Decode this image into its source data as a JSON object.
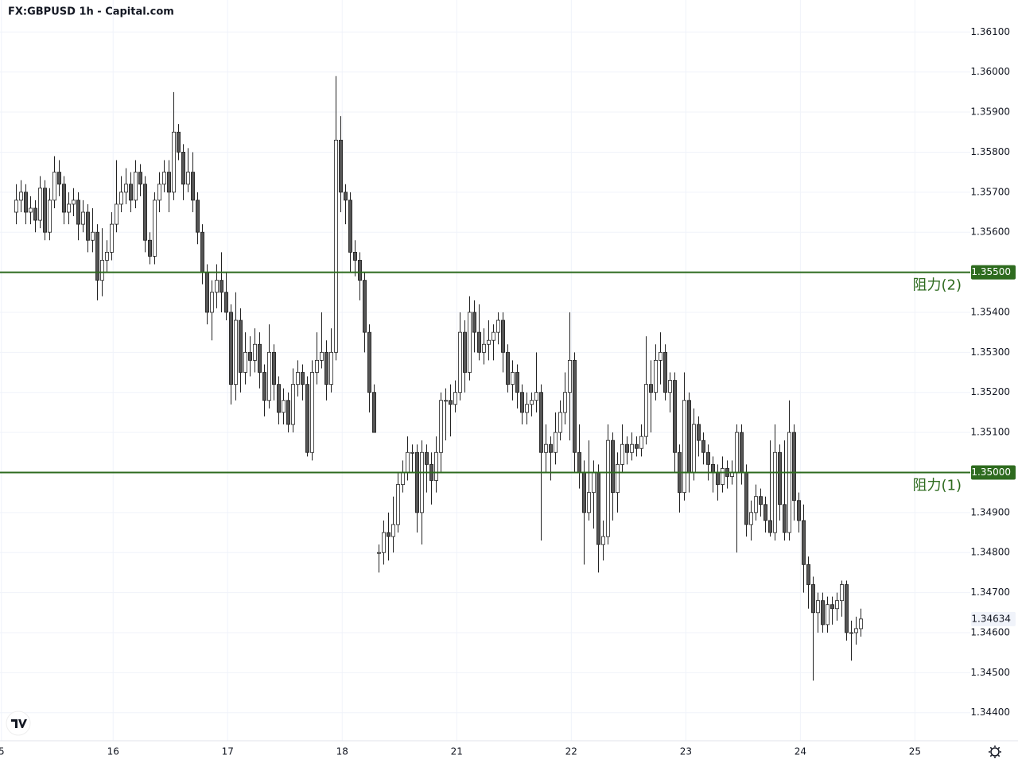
{
  "chart_data": {
    "type": "candlestick",
    "title": "FX:GBPUSD 1h - Capital.com",
    "up_color": "#ffffff",
    "down_color": "#555555",
    "border_color": "#222222",
    "grid": true,
    "ylim": [
      1.3433,
      1.3618
    ],
    "yticks": [
      {
        "value": 1.361,
        "label": "1.36100"
      },
      {
        "value": 1.36,
        "label": "1.36000"
      },
      {
        "value": 1.359,
        "label": "1.35900"
      },
      {
        "value": 1.358,
        "label": "1.35800"
      },
      {
        "value": 1.357,
        "label": "1.35700"
      },
      {
        "value": 1.356,
        "label": "1.35600"
      },
      {
        "value": 1.354,
        "label": "1.35400"
      },
      {
        "value": 1.353,
        "label": "1.35300"
      },
      {
        "value": 1.352,
        "label": "1.35200"
      },
      {
        "value": 1.351,
        "label": "1.35100"
      },
      {
        "value": 1.349,
        "label": "1.34900"
      },
      {
        "value": 1.348,
        "label": "1.34800"
      },
      {
        "value": 1.347,
        "label": "1.34700"
      },
      {
        "value": 1.346,
        "label": "1.34600"
      },
      {
        "value": 1.345,
        "label": "1.34500"
      },
      {
        "value": 1.344,
        "label": "1.34400"
      }
    ],
    "xlim": [
      -3.3,
      200
    ],
    "xticks": [
      {
        "value": -3.0,
        "label": "5"
      },
      {
        "value": 20.4,
        "label": "16"
      },
      {
        "value": 44.4,
        "label": "17"
      },
      {
        "value": 68.4,
        "label": "18"
      },
      {
        "value": 92.4,
        "label": "21"
      },
      {
        "value": 116.4,
        "label": "22"
      },
      {
        "value": 140.4,
        "label": "23"
      },
      {
        "value": 164.4,
        "label": "24"
      },
      {
        "value": 188.4,
        "label": "25"
      }
    ],
    "levels": [
      {
        "value": 1.355,
        "label": "阻力(2)",
        "value_label": "1.35500",
        "color": "#2e6b1f"
      },
      {
        "value": 1.35,
        "label": "阻力(1)",
        "value_label": "1.35000",
        "color": "#2e6b1f"
      }
    ],
    "last_price": {
      "value": 1.34634,
      "label": "1.34634"
    },
    "x": [
      0,
      1,
      2,
      3,
      4,
      5,
      6,
      7,
      8,
      9,
      10,
      11,
      12,
      13,
      14,
      15,
      16,
      17,
      18,
      19,
      20,
      21,
      22,
      23,
      24,
      25,
      26,
      27,
      28,
      29,
      30,
      31,
      32,
      33,
      34,
      35,
      36,
      37,
      38,
      39,
      40,
      41,
      42,
      43,
      44,
      45,
      46,
      47,
      48,
      49,
      50,
      51,
      52,
      53,
      54,
      55,
      56,
      57,
      58,
      59,
      60,
      61,
      62,
      63,
      64,
      65,
      66,
      67,
      68,
      69,
      70,
      71,
      72,
      73,
      74,
      75,
      76,
      77,
      78,
      79,
      80,
      81,
      82,
      83,
      84,
      85,
      86,
      87,
      88,
      89,
      90,
      91,
      92,
      93,
      94,
      95,
      96,
      97,
      98,
      99,
      100,
      101,
      102,
      103,
      104,
      105,
      106,
      107,
      108,
      109,
      110,
      111,
      112,
      113,
      114,
      115,
      116,
      117,
      118,
      119,
      120,
      121,
      122,
      123,
      124,
      125,
      126,
      127,
      128,
      129,
      130,
      131,
      132,
      133,
      134,
      135,
      136,
      137,
      138,
      139,
      140,
      141,
      142,
      143,
      144,
      145,
      146,
      147,
      148,
      149,
      150,
      151,
      152,
      153,
      154,
      155,
      156,
      157,
      158,
      159,
      160,
      161,
      162,
      163,
      164,
      165,
      166,
      167,
      168,
      169,
      170,
      171,
      172,
      173,
      174,
      175,
      176,
      177
    ],
    "candles": [
      [
        1.3565,
        1.3572,
        1.3562,
        1.3568
      ],
      [
        1.3568,
        1.3573,
        1.3565,
        1.357
      ],
      [
        1.357,
        1.3572,
        1.3562,
        1.3565
      ],
      [
        1.3565,
        1.3569,
        1.3562,
        1.3566
      ],
      [
        1.3566,
        1.3568,
        1.356,
        1.3563
      ],
      [
        1.3563,
        1.3574,
        1.3561,
        1.3571
      ],
      [
        1.3571,
        1.3573,
        1.3558,
        1.356
      ],
      [
        1.356,
        1.3571,
        1.3558,
        1.3568
      ],
      [
        1.3568,
        1.3579,
        1.3566,
        1.3575
      ],
      [
        1.3575,
        1.3578,
        1.3569,
        1.3572
      ],
      [
        1.3572,
        1.3574,
        1.3562,
        1.3565
      ],
      [
        1.3565,
        1.357,
        1.3562,
        1.3567
      ],
      [
        1.3567,
        1.3571,
        1.3564,
        1.3568
      ],
      [
        1.3568,
        1.357,
        1.3558,
        1.3562
      ],
      [
        1.3562,
        1.3568,
        1.356,
        1.3565
      ],
      [
        1.3565,
        1.3567,
        1.3555,
        1.3558
      ],
      [
        1.3558,
        1.3566,
        1.3555,
        1.356
      ],
      [
        1.356,
        1.3562,
        1.3543,
        1.3548
      ],
      [
        1.3548,
        1.3561,
        1.3544,
        1.3553
      ],
      [
        1.3553,
        1.3558,
        1.355,
        1.3555
      ],
      [
        1.3555,
        1.3565,
        1.3553,
        1.3562
      ],
      [
        1.3562,
        1.3578,
        1.356,
        1.3567
      ],
      [
        1.3567,
        1.3574,
        1.3565,
        1.357
      ],
      [
        1.357,
        1.3576,
        1.3567,
        1.3572
      ],
      [
        1.3572,
        1.3575,
        1.3565,
        1.3568
      ],
      [
        1.3568,
        1.3578,
        1.3566,
        1.3575
      ],
      [
        1.3575,
        1.3577,
        1.3569,
        1.3572
      ],
      [
        1.3572,
        1.3574,
        1.3555,
        1.3558
      ],
      [
        1.3558,
        1.356,
        1.3552,
        1.3554
      ],
      [
        1.3554,
        1.357,
        1.3552,
        1.3568
      ],
      [
        1.3568,
        1.3575,
        1.3565,
        1.3572
      ],
      [
        1.3572,
        1.3578,
        1.357,
        1.3575
      ],
      [
        1.3575,
        1.3578,
        1.3565,
        1.357
      ],
      [
        1.357,
        1.3595,
        1.3568,
        1.3585
      ],
      [
        1.3585,
        1.3587,
        1.3578,
        1.358
      ],
      [
        1.358,
        1.3582,
        1.3568,
        1.3572
      ],
      [
        1.3572,
        1.3581,
        1.357,
        1.3575
      ],
      [
        1.3575,
        1.358,
        1.3565,
        1.3568
      ],
      [
        1.3568,
        1.357,
        1.3557,
        1.356
      ],
      [
        1.356,
        1.3562,
        1.3547,
        1.355
      ],
      [
        1.355,
        1.3552,
        1.3537,
        1.354
      ],
      [
        1.354,
        1.3548,
        1.3533,
        1.3545
      ],
      [
        1.3545,
        1.3552,
        1.3541,
        1.3548
      ],
      [
        1.3548,
        1.3555,
        1.354,
        1.3545
      ],
      [
        1.3545,
        1.355,
        1.3538,
        1.354
      ],
      [
        1.354,
        1.3542,
        1.3517,
        1.3522
      ],
      [
        1.3522,
        1.3545,
        1.3518,
        1.3538
      ],
      [
        1.3538,
        1.3541,
        1.352,
        1.3525
      ],
      [
        1.3525,
        1.3535,
        1.3522,
        1.353
      ],
      [
        1.353,
        1.3534,
        1.3524,
        1.3528
      ],
      [
        1.3528,
        1.3536,
        1.3525,
        1.3532
      ],
      [
        1.3532,
        1.3535,
        1.3521,
        1.3525
      ],
      [
        1.3525,
        1.3527,
        1.3514,
        1.3518
      ],
      [
        1.3518,
        1.3537,
        1.3516,
        1.353
      ],
      [
        1.353,
        1.3532,
        1.3518,
        1.3522
      ],
      [
        1.3522,
        1.3524,
        1.3512,
        1.3515
      ],
      [
        1.3515,
        1.3521,
        1.3512,
        1.3518
      ],
      [
        1.3518,
        1.352,
        1.351,
        1.3512
      ],
      [
        1.3512,
        1.3526,
        1.351,
        1.3522
      ],
      [
        1.3522,
        1.3528,
        1.3519,
        1.3525
      ],
      [
        1.3525,
        1.3527,
        1.3518,
        1.3522
      ],
      [
        1.3522,
        1.3524,
        1.3504,
        1.3505
      ],
      [
        1.3505,
        1.3528,
        1.3503,
        1.3525
      ],
      [
        1.3525,
        1.3535,
        1.3522,
        1.3528
      ],
      [
        1.3528,
        1.354,
        1.3526,
        1.353
      ],
      [
        1.353,
        1.3533,
        1.3518,
        1.3522
      ],
      [
        1.3522,
        1.3536,
        1.352,
        1.353
      ],
      [
        1.353,
        1.3599,
        1.3528,
        1.3583
      ],
      [
        1.3583,
        1.3589,
        1.3565,
        1.357
      ],
      [
        1.357,
        1.3572,
        1.3562,
        1.3568
      ],
      [
        1.3568,
        1.357,
        1.355,
        1.3555
      ],
      [
        1.3555,
        1.3558,
        1.3549,
        1.3553
      ],
      [
        1.3553,
        1.3555,
        1.3543,
        1.3548
      ],
      [
        1.3548,
        1.355,
        1.353,
        1.3535
      ],
      [
        1.3535,
        1.3537,
        1.3515,
        1.352
      ],
      [
        1.352,
        1.3522,
        1.351,
        1.351
      ],
      [
        1.348,
        1.3482,
        1.3475,
        1.348
      ],
      [
        1.348,
        1.3488,
        1.3477,
        1.3485
      ],
      [
        1.3485,
        1.349,
        1.3478,
        1.3484
      ],
      [
        1.3484,
        1.3494,
        1.348,
        1.3487
      ],
      [
        1.3487,
        1.35,
        1.3485,
        1.3497
      ],
      [
        1.3497,
        1.3503,
        1.3495,
        1.35
      ],
      [
        1.35,
        1.3509,
        1.3498,
        1.3505
      ],
      [
        1.3505,
        1.3507,
        1.35,
        1.3505
      ],
      [
        1.3505,
        1.3507,
        1.3485,
        1.349
      ],
      [
        1.349,
        1.3508,
        1.3482,
        1.3505
      ],
      [
        1.3505,
        1.3507,
        1.3495,
        1.3502
      ],
      [
        1.3502,
        1.3505,
        1.3492,
        1.3498
      ],
      [
        1.3498,
        1.3509,
        1.3495,
        1.3505
      ],
      [
        1.3505,
        1.352,
        1.35,
        1.3518
      ],
      [
        1.3518,
        1.3521,
        1.3508,
        1.3518
      ],
      [
        1.3518,
        1.3522,
        1.3509,
        1.3517
      ],
      [
        1.3517,
        1.3523,
        1.3515,
        1.352
      ],
      [
        1.352,
        1.354,
        1.3518,
        1.3535
      ],
      [
        1.3535,
        1.3538,
        1.352,
        1.3525
      ],
      [
        1.3525,
        1.3544,
        1.3523,
        1.354
      ],
      [
        1.354,
        1.3543,
        1.353,
        1.3535
      ],
      [
        1.3535,
        1.3542,
        1.3528,
        1.353
      ],
      [
        1.353,
        1.3536,
        1.3527,
        1.3532
      ],
      [
        1.3532,
        1.3538,
        1.3528,
        1.3533
      ],
      [
        1.3533,
        1.3537,
        1.3528,
        1.3535
      ],
      [
        1.3535,
        1.354,
        1.3532,
        1.3538
      ],
      [
        1.3538,
        1.354,
        1.3525,
        1.353
      ],
      [
        1.353,
        1.3532,
        1.352,
        1.3522
      ],
      [
        1.3522,
        1.3528,
        1.3518,
        1.3525
      ],
      [
        1.3525,
        1.3527,
        1.3516,
        1.352
      ],
      [
        1.352,
        1.3522,
        1.3512,
        1.3515
      ],
      [
        1.3515,
        1.352,
        1.3512,
        1.3517
      ],
      [
        1.3517,
        1.352,
        1.3514,
        1.3518
      ],
      [
        1.3518,
        1.353,
        1.3515,
        1.352
      ],
      [
        1.352,
        1.3522,
        1.3483,
        1.3505
      ],
      [
        1.3505,
        1.3512,
        1.35,
        1.3507
      ],
      [
        1.3507,
        1.3509,
        1.3498,
        1.3505
      ],
      [
        1.3505,
        1.3515,
        1.3502,
        1.351
      ],
      [
        1.351,
        1.3518,
        1.3508,
        1.3515
      ],
      [
        1.3515,
        1.3525,
        1.3512,
        1.352
      ],
      [
        1.352,
        1.354,
        1.3508,
        1.3528
      ],
      [
        1.3528,
        1.353,
        1.35,
        1.3505
      ],
      [
        1.3505,
        1.3512,
        1.3496,
        1.35
      ],
      [
        1.35,
        1.3503,
        1.3477,
        1.349
      ],
      [
        1.349,
        1.3508,
        1.3488,
        1.3495
      ],
      [
        1.3495,
        1.3503,
        1.3486,
        1.35
      ],
      [
        1.35,
        1.3502,
        1.3475,
        1.3482
      ],
      [
        1.3482,
        1.3488,
        1.3478,
        1.3484
      ],
      [
        1.3484,
        1.3512,
        1.3482,
        1.3508
      ],
      [
        1.3508,
        1.351,
        1.3488,
        1.3495
      ],
      [
        1.3495,
        1.3505,
        1.349,
        1.3502
      ],
      [
        1.3502,
        1.3512,
        1.35,
        1.3507
      ],
      [
        1.3507,
        1.3509,
        1.3502,
        1.3505
      ],
      [
        1.3505,
        1.351,
        1.3503,
        1.3507
      ],
      [
        1.3507,
        1.3509,
        1.3504,
        1.3506
      ],
      [
        1.3506,
        1.3512,
        1.3504,
        1.3509
      ],
      [
        1.3509,
        1.3534,
        1.3507,
        1.3522
      ],
      [
        1.3522,
        1.3528,
        1.351,
        1.352
      ],
      [
        1.352,
        1.3532,
        1.3518,
        1.3528
      ],
      [
        1.3528,
        1.3535,
        1.3522,
        1.353
      ],
      [
        1.353,
        1.3532,
        1.3518,
        1.352
      ],
      [
        1.352,
        1.3525,
        1.3515,
        1.3523
      ],
      [
        1.3523,
        1.3525,
        1.35,
        1.3505
      ],
      [
        1.3505,
        1.3507,
        1.349,
        1.3495
      ],
      [
        1.3495,
        1.3525,
        1.3493,
        1.3518
      ],
      [
        1.3518,
        1.352,
        1.3495,
        1.35
      ],
      [
        1.35,
        1.3516,
        1.3498,
        1.3512
      ],
      [
        1.3512,
        1.3514,
        1.3504,
        1.3508
      ],
      [
        1.3508,
        1.351,
        1.3502,
        1.3505
      ],
      [
        1.3505,
        1.3507,
        1.3498,
        1.3502
      ],
      [
        1.3502,
        1.3504,
        1.3495,
        1.35
      ],
      [
        1.35,
        1.3502,
        1.3493,
        1.3497
      ],
      [
        1.3497,
        1.3504,
        1.3495,
        1.3501
      ],
      [
        1.3501,
        1.3503,
        1.3496,
        1.3499
      ],
      [
        1.3499,
        1.3503,
        1.3497,
        1.35
      ],
      [
        1.35,
        1.3512,
        1.348,
        1.351
      ],
      [
        1.351,
        1.3512,
        1.3497,
        1.35
      ],
      [
        1.35,
        1.3502,
        1.3484,
        1.3487
      ],
      [
        1.3487,
        1.3493,
        1.3483,
        1.349
      ],
      [
        1.349,
        1.3497,
        1.3488,
        1.3494
      ],
      [
        1.3494,
        1.3496,
        1.3489,
        1.3492
      ],
      [
        1.3492,
        1.3494,
        1.3485,
        1.3488
      ],
      [
        1.3488,
        1.3508,
        1.3484,
        1.3485
      ],
      [
        1.3485,
        1.3512,
        1.3483,
        1.3505
      ],
      [
        1.3505,
        1.3507,
        1.3488,
        1.3492
      ],
      [
        1.3492,
        1.3508,
        1.3483,
        1.3485
      ],
      [
        1.3485,
        1.3518,
        1.3483,
        1.351
      ],
      [
        1.351,
        1.3512,
        1.3488,
        1.3493
      ],
      [
        1.3493,
        1.3495,
        1.3485,
        1.3488
      ],
      [
        1.3488,
        1.3492,
        1.347,
        1.3477
      ],
      [
        1.3477,
        1.3479,
        1.3466,
        1.3472
      ],
      [
        1.3472,
        1.3474,
        1.3448,
        1.3465
      ],
      [
        1.3465,
        1.347,
        1.346,
        1.3468
      ],
      [
        1.3468,
        1.347,
        1.346,
        1.3462
      ],
      [
        1.3462,
        1.3469,
        1.346,
        1.3467
      ],
      [
        1.3467,
        1.3469,
        1.3462,
        1.3466
      ],
      [
        1.3466,
        1.347,
        1.3463,
        1.3468
      ],
      [
        1.3468,
        1.3473,
        1.3464,
        1.3472
      ],
      [
        1.3472,
        1.3473,
        1.3458,
        1.346
      ],
      [
        1.346,
        1.3463,
        1.3453,
        1.346
      ],
      [
        1.346,
        1.3464,
        1.3457,
        1.3461
      ],
      [
        1.3461,
        1.3466,
        1.3459,
        1.34634
      ]
    ]
  }
}
